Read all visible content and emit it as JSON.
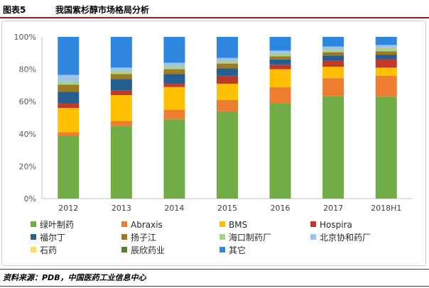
{
  "header": {
    "figure_label": "图表5",
    "title": "我国紫杉醇市场格局分析"
  },
  "source": {
    "text": "资料来源：PDB，中国医药工业信息中心"
  },
  "chart_data": {
    "type": "bar",
    "stacked": true,
    "categories": [
      "2012",
      "2013",
      "2014",
      "2015",
      "2016",
      "2017",
      "2018H1"
    ],
    "y_ticks": [
      "0%",
      "20%",
      "40%",
      "60%",
      "80%",
      "100%"
    ],
    "ylim": [
      0,
      100
    ],
    "grid": false,
    "legend_position": "bottom",
    "series": [
      {
        "name": "绿叶制药",
        "color": "#70ad47",
        "values": [
          39,
          45,
          49,
          54,
          59,
          63.5,
          63
        ]
      },
      {
        "name": "Abraxis",
        "color": "#ed7d31",
        "values": [
          2,
          3,
          6,
          7,
          10,
          11,
          13
        ]
      },
      {
        "name": "BMS",
        "color": "#ffc000",
        "values": [
          15,
          16,
          14,
          10,
          11,
          7,
          5
        ]
      },
      {
        "name": "Hospira",
        "color": "#c0392b",
        "values": [
          3,
          3,
          2,
          5,
          3,
          4,
          5
        ]
      },
      {
        "name": "福尔丁",
        "color": "#255e91",
        "values": [
          7,
          7,
          6,
          4.5,
          3,
          3,
          3
        ]
      },
      {
        "name": "扬子江",
        "color": "#9c7a23",
        "values": [
          4.5,
          3,
          3,
          3,
          2,
          2,
          2
        ]
      },
      {
        "name": "海口制药厂",
        "color": "#a9d08e",
        "values": [
          2,
          2,
          2,
          1.5,
          2,
          2,
          2.5
        ]
      },
      {
        "name": "北京协和药厂",
        "color": "#9dc3e6",
        "values": [
          4,
          2,
          2,
          2,
          1.5,
          1.5,
          1.5
        ]
      },
      {
        "name": "石药",
        "color": "#ffd966",
        "values": [
          0,
          0,
          0,
          0,
          0,
          0,
          0
        ]
      },
      {
        "name": "辰欣药业",
        "color": "#548235",
        "values": [
          0,
          0,
          0,
          0,
          0,
          0,
          0
        ]
      },
      {
        "name": "其它",
        "color": "#2e86de",
        "values": [
          23.5,
          19,
          16,
          13,
          8.5,
          6,
          5
        ]
      }
    ]
  }
}
